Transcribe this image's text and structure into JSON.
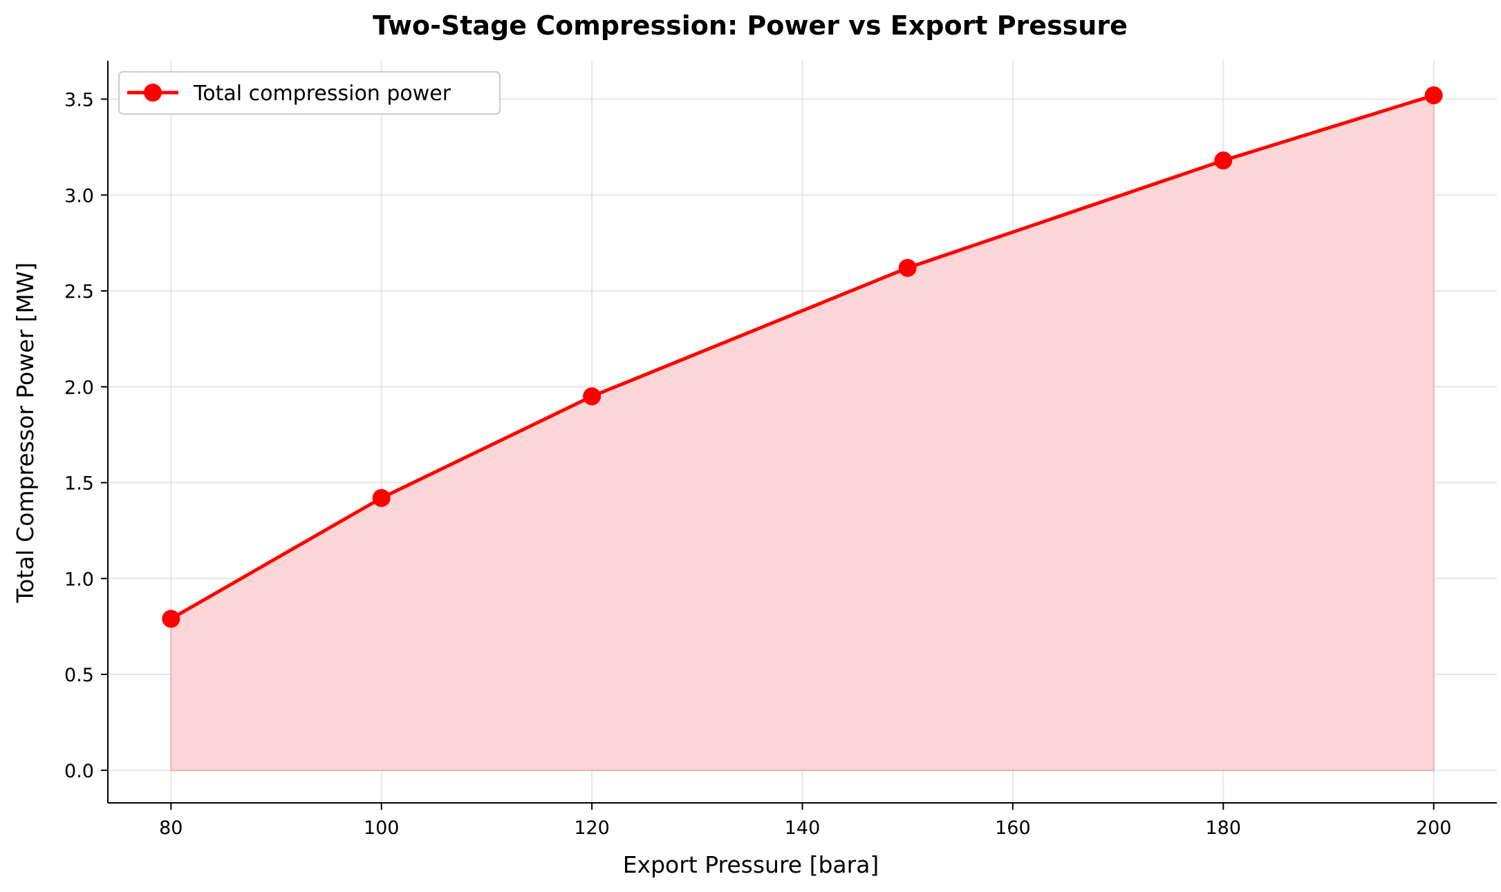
{
  "chart_data": {
    "type": "line",
    "title": "Two-Stage Compression: Power vs Export Pressure",
    "xlabel": "Export Pressure [bara]",
    "ylabel": "Total Compressor Power [MW]",
    "x": [
      80,
      100,
      120,
      150,
      180,
      200
    ],
    "series": [
      {
        "name": "Total compression power",
        "values": [
          0.79,
          1.42,
          1.95,
          2.62,
          3.18,
          3.52
        ]
      }
    ],
    "xlim": [
      74,
      206
    ],
    "ylim": [
      -0.17,
      3.7
    ],
    "xticks": [
      80,
      100,
      120,
      140,
      160,
      180,
      200
    ],
    "yticks": [
      0.0,
      0.5,
      1.0,
      1.5,
      2.0,
      2.5,
      3.0,
      3.5
    ],
    "xtick_labels": [
      "80",
      "100",
      "120",
      "140",
      "160",
      "180",
      "200"
    ],
    "ytick_labels": [
      "0.0",
      "0.5",
      "1.0",
      "1.5",
      "2.0",
      "2.5",
      "3.0",
      "3.5"
    ],
    "grid": true,
    "fill_under_line": true,
    "legend_position": "top-left",
    "colors": {
      "line": "#ff0000",
      "marker": "#ff0000",
      "fill": "#ffd6d8",
      "grid": "#e6e6e6",
      "axis": "#000000"
    }
  }
}
